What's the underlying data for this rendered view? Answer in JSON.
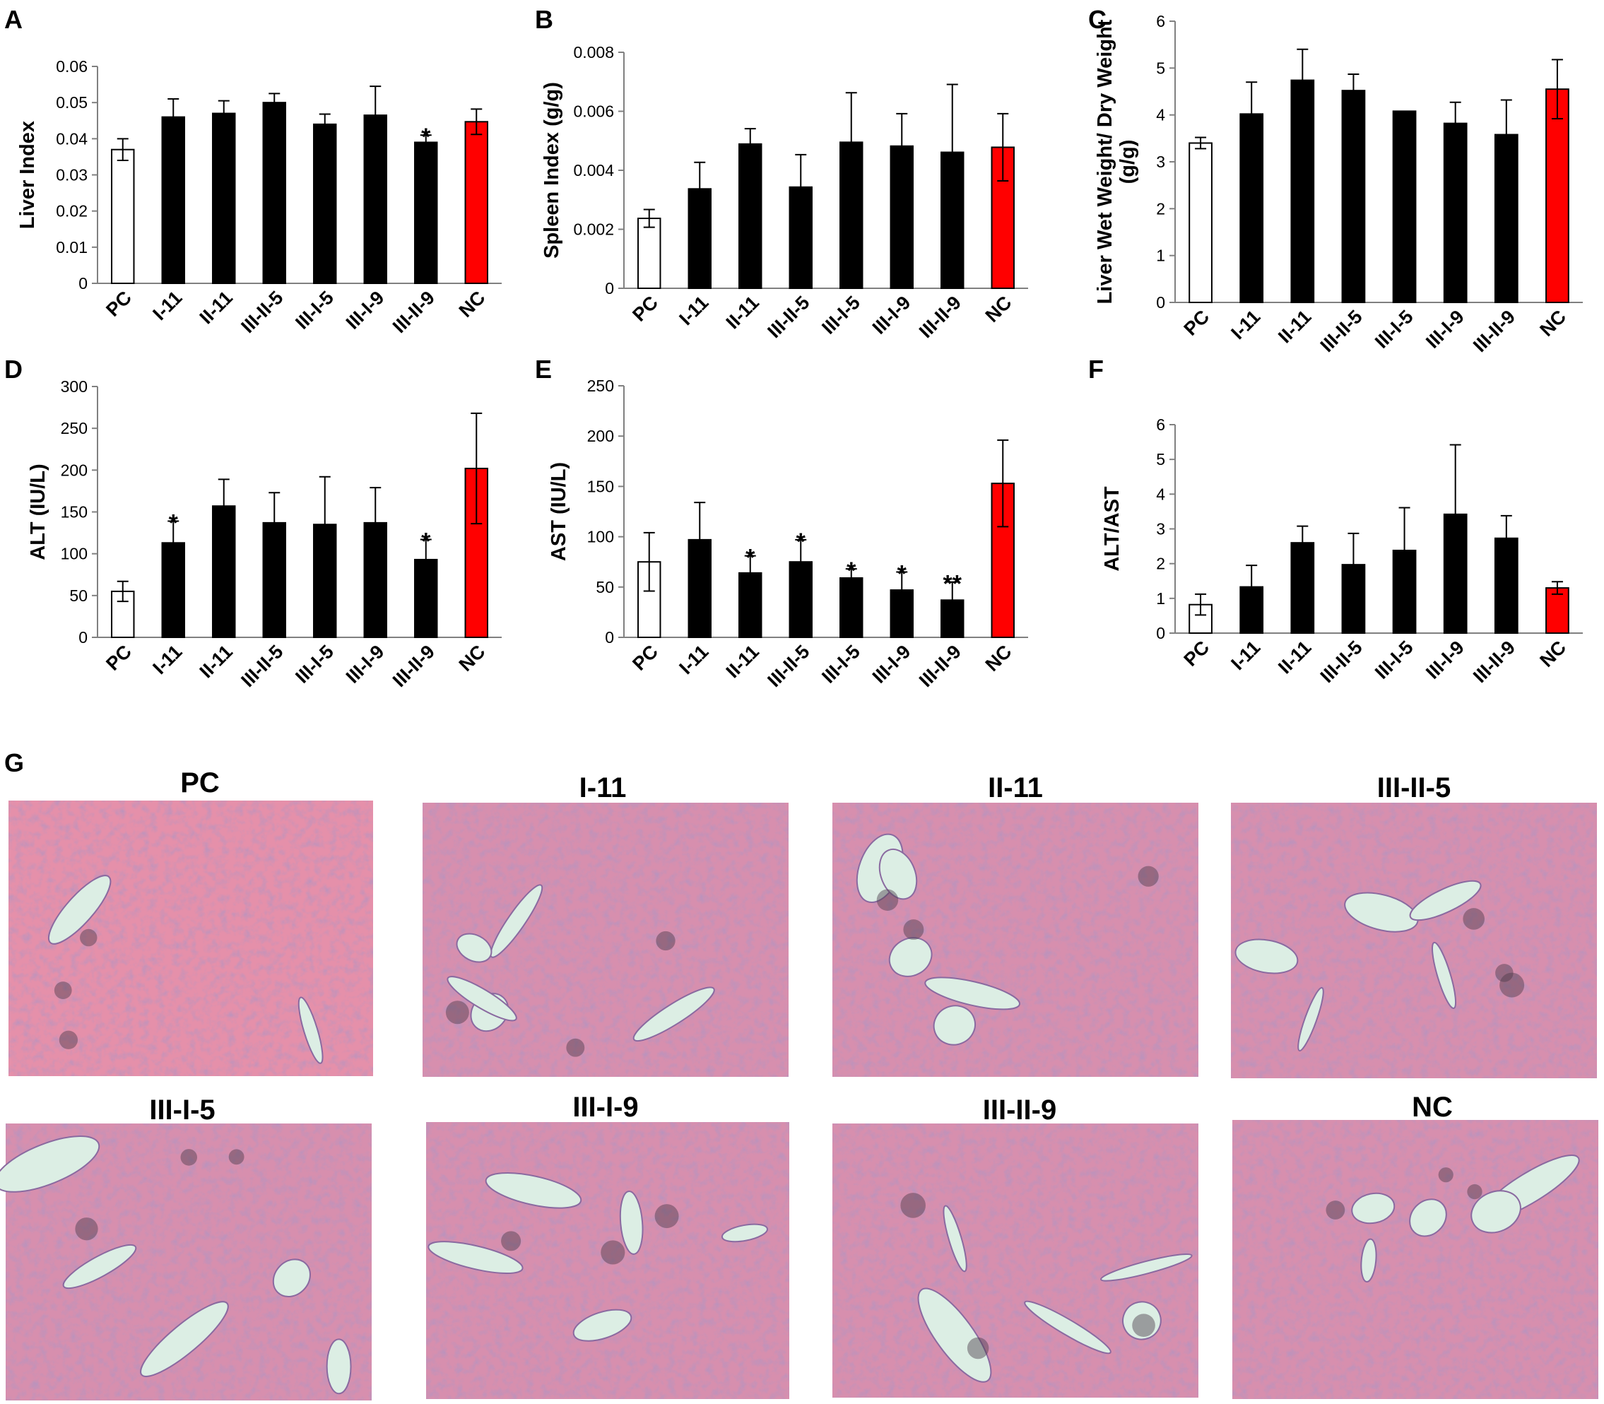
{
  "colors": {
    "positive_control": "#ffffff",
    "treatment": "#000000",
    "negative_control": "#ff0000",
    "tissue_base": "#d78fae"
  },
  "chart_data": [
    {
      "panel": "A",
      "type": "bar",
      "categories": [
        "PC",
        "I-11",
        "II-11",
        "III-II-5",
        "III-I-5",
        "III-I-9",
        "III-II-9",
        "NC"
      ],
      "values": [
        0.037,
        0.046,
        0.047,
        0.05,
        0.044,
        0.0465,
        0.039,
        0.0447
      ],
      "errors": [
        0.003,
        0.005,
        0.0035,
        0.0025,
        0.0028,
        0.008,
        0.002,
        0.0035
      ],
      "significance": [
        "",
        "",
        "",
        "",
        "",
        "",
        "*",
        ""
      ],
      "ylabel": "Liver Index",
      "ylim": [
        0,
        0.06
      ],
      "yticks": [
        0,
        0.01,
        0.02,
        0.03,
        0.04,
        0.05,
        0.06
      ],
      "ytick_labels": [
        "0",
        "0.01",
        "0.02",
        "0.03",
        "0.04",
        "0.05",
        "0.06"
      ]
    },
    {
      "panel": "B",
      "type": "bar",
      "categories": [
        "PC",
        "I-11",
        "II-11",
        "III-II-5",
        "III-I-5",
        "III-I-9",
        "III-II-9",
        "NC"
      ],
      "values": [
        0.00237,
        0.00337,
        0.00489,
        0.00343,
        0.00495,
        0.00482,
        0.00461,
        0.00478
      ],
      "errors": [
        0.0003,
        0.0009,
        0.00052,
        0.0011,
        0.00168,
        0.0011,
        0.0023,
        0.00114
      ],
      "significance": [
        "",
        "",
        "",
        "",
        "",
        "",
        "",
        ""
      ],
      "ylabel": "Spleen Index (g/g)",
      "ylim": [
        0,
        0.008
      ],
      "yticks": [
        0,
        0.002,
        0.004,
        0.006,
        0.008
      ],
      "ytick_labels": [
        "0",
        "0.002",
        "0.004",
        "0.006",
        "0.008"
      ]
    },
    {
      "panel": "C",
      "type": "bar",
      "categories": [
        "PC",
        "I-11",
        "II-11",
        "III-II-5",
        "III-I-5",
        "III-I-9",
        "III-II-9",
        "NC"
      ],
      "values": [
        3.4,
        4.02,
        4.74,
        4.52,
        4.08,
        3.82,
        3.58,
        4.55
      ],
      "errors": [
        0.12,
        0.68,
        0.66,
        0.35,
        0.0,
        0.45,
        0.74,
        0.63
      ],
      "significance": [
        "",
        "",
        "",
        "",
        "",
        "",
        "",
        ""
      ],
      "ylabel": "Liver Wet Weight/ Dry Weight (g/g)",
      "ylabel_lines": [
        "Liver Wet Weight/ Dry Weight",
        "(g/g)"
      ],
      "ylim": [
        0,
        6
      ],
      "yticks": [
        0,
        1,
        2,
        3,
        4,
        5,
        6
      ],
      "ytick_labels": [
        "0",
        "1",
        "2",
        "3",
        "4",
        "5",
        "6"
      ]
    },
    {
      "panel": "D",
      "type": "bar",
      "categories": [
        "PC",
        "I-11",
        "II-11",
        "III-II-5",
        "III-I-5",
        "III-I-9",
        "III-II-9",
        "NC"
      ],
      "values": [
        55,
        113,
        157,
        137,
        135,
        137,
        93,
        202
      ],
      "errors": [
        12,
        26,
        32,
        36,
        57,
        42,
        24,
        66
      ],
      "significance": [
        "",
        "*",
        "",
        "",
        "",
        "",
        "*",
        ""
      ],
      "ylabel": "ALT (IU/L)",
      "ylim": [
        0,
        300
      ],
      "yticks": [
        0,
        50,
        100,
        150,
        200,
        250,
        300
      ],
      "ytick_labels": [
        "0",
        "50",
        "100",
        "150",
        "200",
        "250",
        "300"
      ]
    },
    {
      "panel": "E",
      "type": "bar",
      "categories": [
        "PC",
        "I-11",
        "II-11",
        "III-II-5",
        "III-I-5",
        "III-I-9",
        "III-II-9",
        "NC"
      ],
      "values": [
        75,
        97,
        64,
        75,
        59,
        47,
        37,
        153
      ],
      "errors": [
        29,
        37,
        17,
        22,
        9,
        18,
        18,
        43
      ],
      "significance": [
        "",
        "",
        "*",
        "*",
        "*",
        "*",
        "**",
        ""
      ],
      "ylabel": "AST (IU/L)",
      "ylim": [
        0,
        250
      ],
      "yticks": [
        0,
        50,
        100,
        150,
        200,
        250
      ],
      "ytick_labels": [
        "0",
        "50",
        "100",
        "150",
        "200",
        "250"
      ]
    },
    {
      "panel": "F",
      "type": "bar",
      "categories": [
        "PC",
        "I-11",
        "II-11",
        "III-II-5",
        "III-I-5",
        "III-I-9",
        "III-II-9",
        "NC"
      ],
      "values": [
        0.82,
        1.33,
        2.6,
        1.97,
        2.38,
        3.42,
        2.73,
        1.3
      ],
      "errors": [
        0.3,
        0.62,
        0.48,
        0.9,
        1.23,
        2.0,
        0.65,
        0.18
      ],
      "significance": [
        "",
        "",
        "",
        "",
        "",
        "",
        "",
        ""
      ],
      "ylabel": "ALT/AST",
      "ylim": [
        0,
        6
      ],
      "yticks": [
        0,
        1,
        2,
        3,
        4,
        5,
        6
      ],
      "ytick_labels": [
        "0",
        "1",
        "2",
        "3",
        "4",
        "5",
        "6"
      ]
    }
  ],
  "histology": {
    "panel": "G",
    "images": [
      {
        "title": "PC"
      },
      {
        "title": "I-11"
      },
      {
        "title": "II-11"
      },
      {
        "title": "III-II-5"
      },
      {
        "title": "III-I-5"
      },
      {
        "title": "III-I-9"
      },
      {
        "title": "III-II-9"
      },
      {
        "title": "NC"
      }
    ]
  }
}
